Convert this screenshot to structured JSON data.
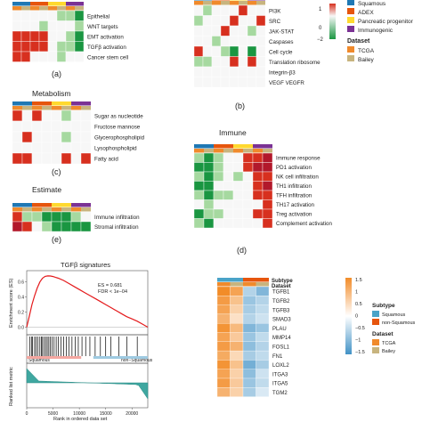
{
  "panel_labels": {
    "a": "(a)",
    "b": "(b)",
    "c": "(c)",
    "d": "(d)",
    "e": "(e)"
  },
  "colors": {
    "red": "#d7301f",
    "light_red": "#f4a6a0",
    "white": "#f7f7f7",
    "light_green": "#a6d9a0",
    "green": "#1a9641",
    "squamous": "#1f78b4",
    "adex": "#e6550d",
    "pancreatic_progenitor": "#ffd92f",
    "immunogenic": "#7b3294",
    "tcga": "#f08a2c",
    "bailey": "#c8b47e",
    "tgf_orange": "#f28c28",
    "tgf_light": "#fde3c2",
    "tgf_blue": "#4292c6",
    "tgf_lightblue": "#c6dbef"
  },
  "legend_top": {
    "scale_max": "1",
    "scale_mid": "0",
    "scale_min": "−2",
    "subtype_items": [
      "Squamous",
      "ADEX",
      "Pancreatic progenitor",
      "Immunogenic"
    ],
    "dataset_title": "Dataset",
    "dataset_items": [
      "TCGA",
      "Bailey"
    ]
  },
  "legend_tgf": {
    "subtype_title": "Subtype",
    "subtype_items": [
      "Squamous",
      "non-Squamous"
    ],
    "dataset_title": "Dataset",
    "dataset_items": [
      "TCGA",
      "Bailey"
    ],
    "scale_labels": [
      "1.5",
      "1",
      "0.5",
      "0",
      "−0.5",
      "−1",
      "−1.5"
    ]
  },
  "chart_data": [
    {
      "type": "heatmap",
      "panel": "a",
      "title": "",
      "rows": [
        "Epithelial",
        "WNT targets",
        "EMT activation",
        "TGFβ activation",
        "Cancer stem cell"
      ],
      "columns": 8,
      "values": [
        [
          0,
          0,
          0,
          0,
          0,
          -1,
          -1,
          -2
        ],
        [
          0,
          0,
          0,
          -1,
          0,
          0,
          0,
          -1
        ],
        [
          1,
          1,
          1,
          1,
          0,
          0,
          -1,
          -2
        ],
        [
          1,
          1,
          1,
          1,
          0,
          -1,
          -1,
          -2
        ],
        [
          1,
          1,
          0,
          0,
          0,
          -1,
          0,
          0
        ]
      ]
    },
    {
      "type": "heatmap",
      "panel": "b",
      "title": "",
      "rows": [
        "PI3K",
        "SRC",
        "JAK-STAT",
        "Caspases",
        "Cell cycle",
        "Translation ribosome",
        "Integrin-β3",
        "VEGF VEGFR"
      ],
      "columns": 8,
      "values": [
        [
          0,
          -1,
          0,
          0,
          0,
          1,
          0,
          0
        ],
        [
          -1,
          0,
          0,
          0,
          1,
          0,
          0,
          1
        ],
        [
          0,
          0,
          0,
          1,
          0,
          0,
          -1,
          0
        ],
        [
          0,
          0,
          -1,
          0,
          0,
          0,
          0,
          0
        ],
        [
          1,
          0,
          0,
          -1,
          -2,
          0,
          -2,
          0
        ],
        [
          -1,
          -1,
          0,
          0,
          1,
          0,
          1,
          0
        ],
        [
          0,
          0,
          0,
          0,
          0,
          0,
          0,
          0
        ],
        [
          0,
          0,
          0,
          0,
          0,
          0,
          0,
          0
        ]
      ]
    },
    {
      "type": "heatmap",
      "panel": "c",
      "title": "Metabolism",
      "rows": [
        "Sugar as nucleotide",
        "Fructose mannose",
        "Glycerophospholipid",
        "Lysophospholipid",
        "Fatty acid"
      ],
      "columns": 8,
      "values": [
        [
          1,
          0,
          1,
          0,
          0,
          -1,
          0,
          0
        ],
        [
          0,
          0,
          0,
          0,
          0,
          0,
          0,
          0
        ],
        [
          0,
          1,
          0,
          0,
          0,
          -1,
          0,
          0
        ],
        [
          0,
          0,
          0,
          0,
          0,
          0,
          0,
          0
        ],
        [
          1,
          1,
          0,
          0,
          0,
          1,
          0,
          1
        ]
      ]
    },
    {
      "type": "heatmap",
      "panel": "d",
      "title": "Immune",
      "rows": [
        "Immune response",
        "PD1 activation",
        "NK cell infiltration",
        "TH1 infiltration",
        "TFH infiltration",
        "TH17 activation",
        "Treg activation",
        "Complement activation"
      ],
      "columns": 8,
      "values": [
        [
          -1,
          -2,
          -1,
          0,
          0,
          1,
          1,
          2
        ],
        [
          -2,
          -2,
          -1,
          0,
          0,
          1,
          2,
          2
        ],
        [
          -1,
          -2,
          -1,
          0,
          -1,
          0,
          1,
          1
        ],
        [
          -2,
          -2,
          0,
          0,
          0,
          0,
          1,
          2
        ],
        [
          -1,
          -2,
          -1,
          -1,
          0,
          0,
          1,
          1
        ],
        [
          0,
          -1,
          0,
          0,
          0,
          0,
          0,
          1
        ],
        [
          -2,
          -1,
          -1,
          0,
          0,
          0,
          1,
          1
        ],
        [
          -1,
          -2,
          0,
          0,
          0,
          0,
          0,
          1
        ]
      ]
    },
    {
      "type": "heatmap",
      "panel": "e",
      "title": "Estimate",
      "rows": [
        "Immune infiltration",
        "Stromal infiltration"
      ],
      "columns": 8,
      "values": [
        [
          1,
          -1,
          -1,
          -2,
          -2,
          -2,
          -1,
          0
        ],
        [
          2,
          1,
          0,
          -1,
          -2,
          -2,
          -2,
          -2
        ]
      ]
    },
    {
      "type": "line",
      "panel": "gsea",
      "title": "TGFβ signatures",
      "ylabel": "Enrichment score (ES)",
      "ylabel2": "Ranked list metric",
      "xlabel": "Rank in ordered data set",
      "xlim": [
        0,
        23000
      ],
      "ylim": [
        -0.1,
        0.75
      ],
      "x_ticks": [
        "0",
        "5000",
        "10000",
        "15000",
        "20000"
      ],
      "y_ticks": [
        "0.0",
        "0.2",
        "0.4",
        "0.6"
      ],
      "annotation": [
        "ES = 0.681",
        "FDR < 1e−04"
      ],
      "phenotype_left": "Squamous",
      "phenotype_right": "non−Squamous",
      "x": [
        0,
        500,
        1000,
        1500,
        2000,
        2500,
        3000,
        3500,
        4000,
        4500,
        5000,
        5500,
        6000,
        7000,
        8000,
        9000,
        10000,
        11000,
        12000,
        13000,
        14000,
        15000,
        16000,
        17000,
        18000,
        19000,
        20000,
        21000,
        22000,
        23000
      ],
      "y": [
        0,
        0.15,
        0.3,
        0.42,
        0.52,
        0.6,
        0.65,
        0.675,
        0.68,
        0.679,
        0.672,
        0.66,
        0.65,
        0.62,
        0.58,
        0.54,
        0.5,
        0.46,
        0.42,
        0.38,
        0.34,
        0.3,
        0.26,
        0.22,
        0.18,
        0.14,
        0.11,
        0.08,
        0.04,
        0
      ],
      "hits": [
        600,
        900,
        1100,
        1500,
        1800,
        2100,
        2500,
        2800,
        3000,
        3300,
        3600,
        3900,
        4200,
        4500,
        4800,
        5200,
        5600,
        6000,
        6500,
        7000,
        7500,
        8000,
        8600,
        9200,
        9800,
        10500,
        11200,
        12000,
        13000,
        14000,
        15000,
        16000,
        17500,
        19000,
        21000
      ]
    },
    {
      "type": "heatmap",
      "panel": "tgf",
      "title": "",
      "rows": [
        "TGFB1",
        "TGFB2",
        "TGFB3",
        "SMAD3",
        "PLAU",
        "MMP14",
        "FOSL1",
        "FN1",
        "LOXL2",
        "ITGA3",
        "ITGA5",
        "TGM2"
      ],
      "columns": 4,
      "values": [
        [
          1.5,
          1.2,
          -0.6,
          -1.0
        ],
        [
          1.3,
          0.8,
          -0.8,
          -0.6
        ],
        [
          1.2,
          0.6,
          -0.7,
          -0.5
        ],
        [
          1.0,
          0.4,
          -0.6,
          -0.4
        ],
        [
          1.4,
          0.9,
          -1.0,
          -0.8
        ],
        [
          1.2,
          0.7,
          -0.8,
          -0.5
        ],
        [
          1.3,
          1.0,
          -0.9,
          -0.6
        ],
        [
          1.1,
          0.5,
          -0.7,
          -0.5
        ],
        [
          1.4,
          0.8,
          -1.1,
          -0.7
        ],
        [
          1.2,
          0.6,
          -0.9,
          -0.4
        ],
        [
          1.3,
          0.7,
          -0.8,
          -0.5
        ],
        [
          1.0,
          0.6,
          -0.7,
          -0.3
        ]
      ]
    }
  ]
}
